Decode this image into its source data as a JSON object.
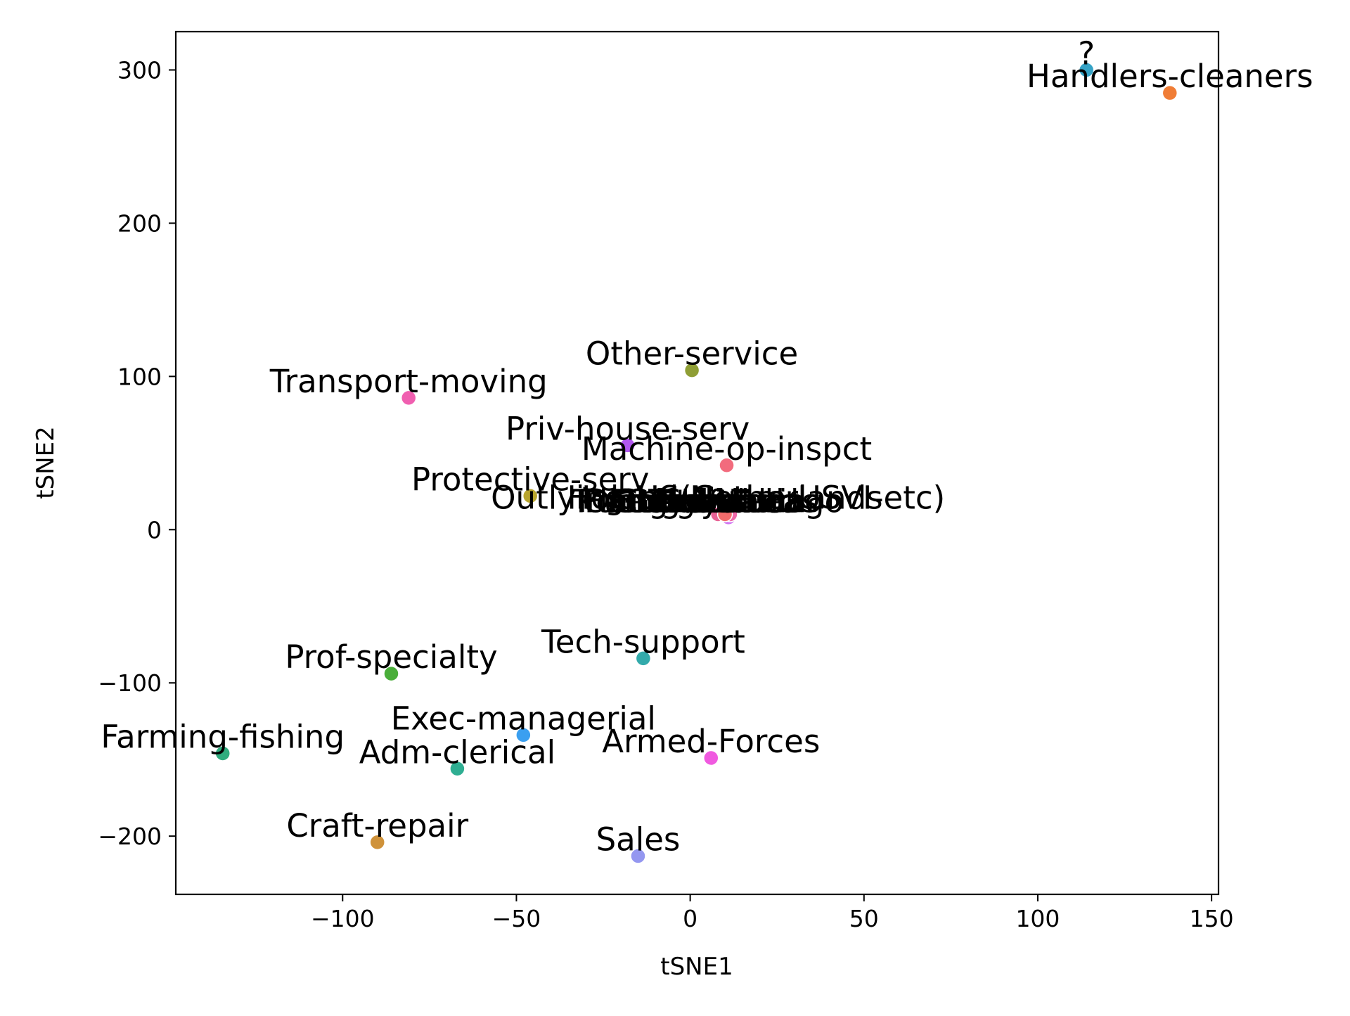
{
  "chart_data": {
    "type": "scatter",
    "title": "",
    "xlabel": "tSNE1",
    "ylabel": "tSNE2",
    "xlim": [
      -148,
      152
    ],
    "ylim": [
      -238,
      325
    ],
    "xticks": [
      -100,
      -50,
      0,
      50,
      100,
      150
    ],
    "xtick_labels": [
      "−100",
      "−50",
      "0",
      "50",
      "100",
      "150"
    ],
    "yticks": [
      -200,
      -100,
      0,
      100,
      200,
      300
    ],
    "ytick_labels": [
      "−200",
      "−100",
      "0",
      "100",
      "200",
      "300"
    ],
    "grid": false,
    "legend": "none",
    "points": [
      {
        "label": "?",
        "x": 114,
        "y": 300,
        "color": "#36a3c6"
      },
      {
        "label": "Handlers-cleaners",
        "x": 138,
        "y": 285,
        "color": "#f07d36"
      },
      {
        "label": "Other-service",
        "x": 0.5,
        "y": 104,
        "color": "#8f9e35"
      },
      {
        "label": "Transport-moving",
        "x": -81,
        "y": 86,
        "color": "#f05fb0"
      },
      {
        "label": "Priv-house-serv",
        "x": -18,
        "y": 55,
        "color": "#b156f0"
      },
      {
        "label": "Machine-op-inspct",
        "x": 10.5,
        "y": 42,
        "color": "#f26b7d"
      },
      {
        "label": "Protective-serv",
        "x": -46,
        "y": 22,
        "color": "#b8a52e"
      },
      {
        "label": "Outlying-US(Guam-USVI-etc)",
        "x": 8,
        "y": 10,
        "color": "#e86295"
      },
      {
        "label": "Holand-Netherlands",
        "x": 10,
        "y": 10,
        "color": "#f36c6c"
      },
      {
        "label": "Tech-support",
        "x": -13.5,
        "y": -84,
        "color": "#33aaab"
      },
      {
        "label": "Prof-specialty",
        "x": -86,
        "y": -94,
        "color": "#4aae3a"
      },
      {
        "label": "Exec-managerial",
        "x": -48,
        "y": -134,
        "color": "#3a9ff0"
      },
      {
        "label": "Farming-fishing",
        "x": -134.5,
        "y": -146,
        "color": "#30ac7e"
      },
      {
        "label": "Armed-Forces",
        "x": 6,
        "y": -149,
        "color": "#f05ae0"
      },
      {
        "label": "Adm-clerical",
        "x": -67,
        "y": -156,
        "color": "#2fae92"
      },
      {
        "label": "Craft-repair",
        "x": -90,
        "y": -204,
        "color": "#cf923a"
      },
      {
        "label": "Sales",
        "x": -15,
        "y": -213,
        "color": "#9497f0"
      }
    ],
    "cluster_labels": [
      {
        "label": "Portugal",
        "x": -13.5,
        "y": 15
      },
      {
        "label": "Hungary",
        "x": -11,
        "y": 15
      },
      {
        "label": "Cambodia",
        "x": -8,
        "y": 15
      },
      {
        "label": "Ecuador",
        "x": -5,
        "y": 15
      },
      {
        "label": "Greece",
        "x": -2.5,
        "y": 15
      },
      {
        "label": "Columbia",
        "x": 0,
        "y": 15
      },
      {
        "label": "Guatemala",
        "x": 2.5,
        "y": 15
      },
      {
        "label": "Trinadad&Tobago",
        "x": 5,
        "y": 15
      },
      {
        "label": "Thailand",
        "x": 7.5,
        "y": 15
      },
      {
        "label": "Yugoslavia",
        "x": 9.5,
        "y": 15
      },
      {
        "label": "Scotland",
        "x": 11.5,
        "y": 15
      },
      {
        "label": "Laos",
        "x": 13,
        "y": 15
      },
      {
        "label": "Honduras",
        "x": 15,
        "y": 15
      }
    ],
    "cluster_points": [
      {
        "x": 8,
        "y": 10,
        "color": "#e86295"
      },
      {
        "x": 9,
        "y": 11,
        "color": "#f26b7d"
      },
      {
        "x": 10,
        "y": 10,
        "color": "#f36c6c"
      },
      {
        "x": 10.5,
        "y": 9,
        "color": "#c86ef0"
      },
      {
        "x": 11,
        "y": 8,
        "color": "#d073f0"
      },
      {
        "x": 11.5,
        "y": 10,
        "color": "#ef68a8"
      }
    ]
  }
}
